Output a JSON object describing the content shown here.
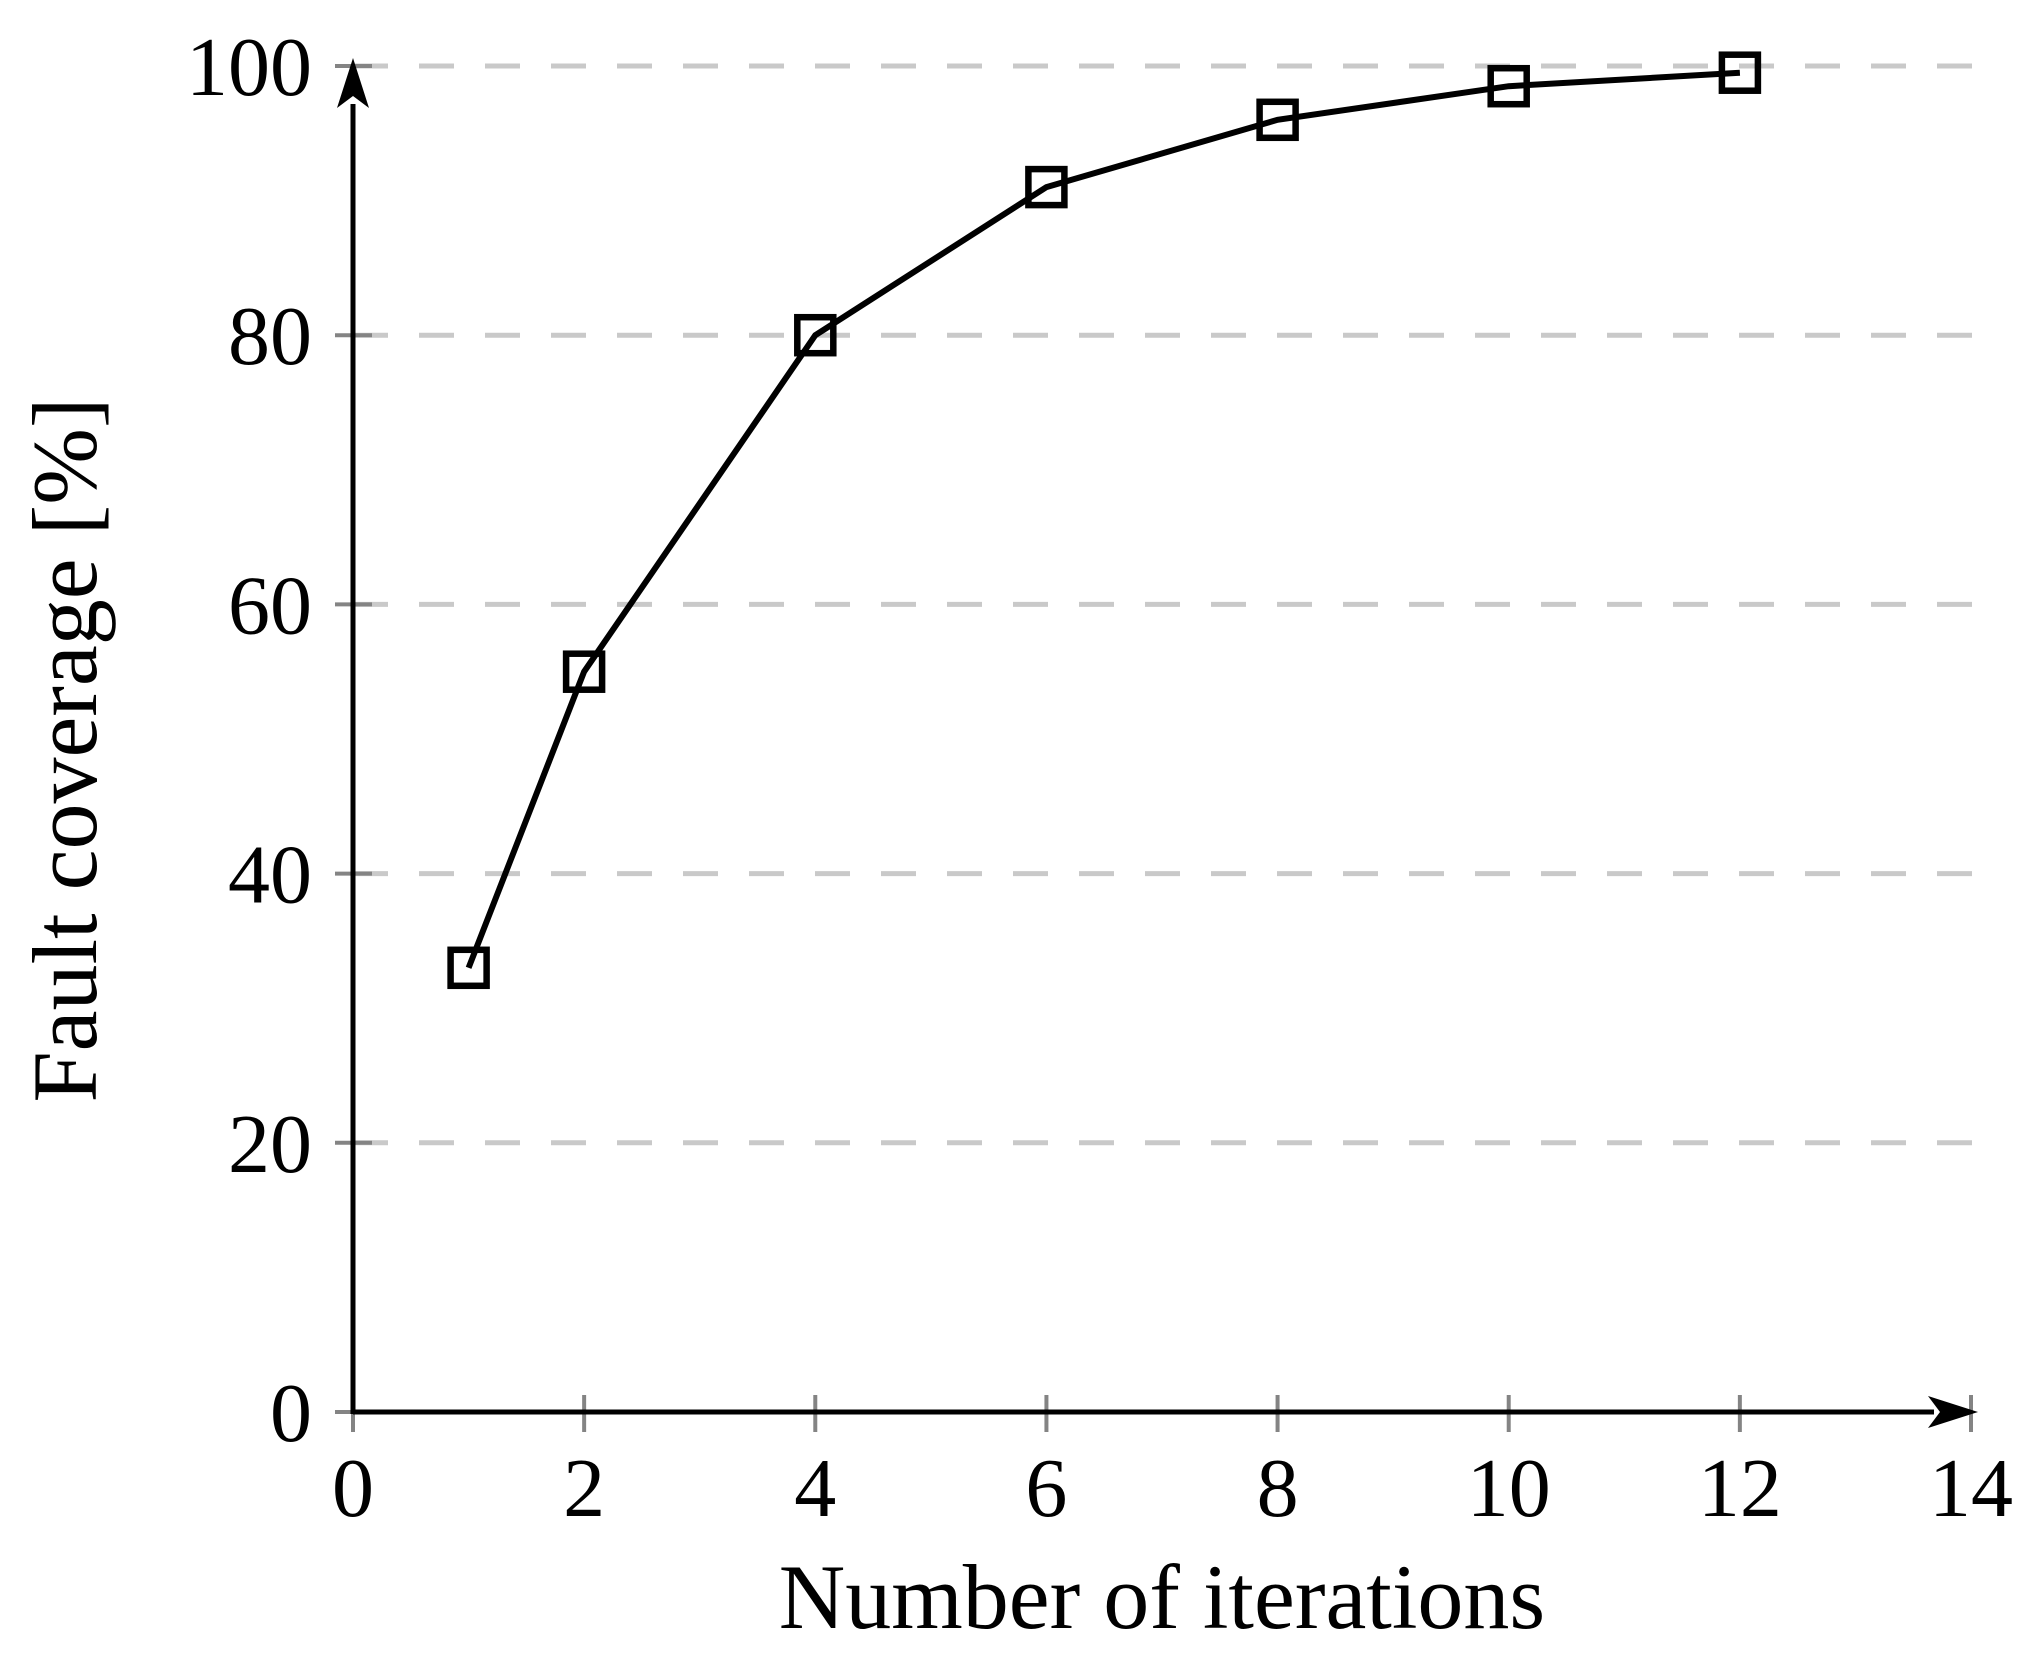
{
  "chart_data": {
    "type": "line",
    "title": "",
    "xlabel": "Number of iterations",
    "ylabel": "Fault coverage [%]",
    "x": [
      1,
      2,
      4,
      6,
      8,
      10,
      12
    ],
    "series": [
      {
        "name": "fault-coverage",
        "values": [
          33,
          55,
          80,
          91,
          96,
          98.5,
          99.5
        ]
      }
    ],
    "xlim": [
      0,
      14
    ],
    "ylim": [
      0,
      100
    ],
    "x_ticks": [
      0,
      2,
      4,
      6,
      8,
      10,
      12,
      14
    ],
    "y_ticks": [
      0,
      20,
      40,
      60,
      80,
      100
    ],
    "grid": "horizontal-dashed",
    "legend_position": "none",
    "marker": "open-square",
    "colors": {
      "line": "#000000",
      "marker_stroke": "#000000",
      "grid": "#c9c9c9",
      "tick": "#848484",
      "axis": "#000000",
      "text": "#000000",
      "background": "#ffffff"
    }
  }
}
